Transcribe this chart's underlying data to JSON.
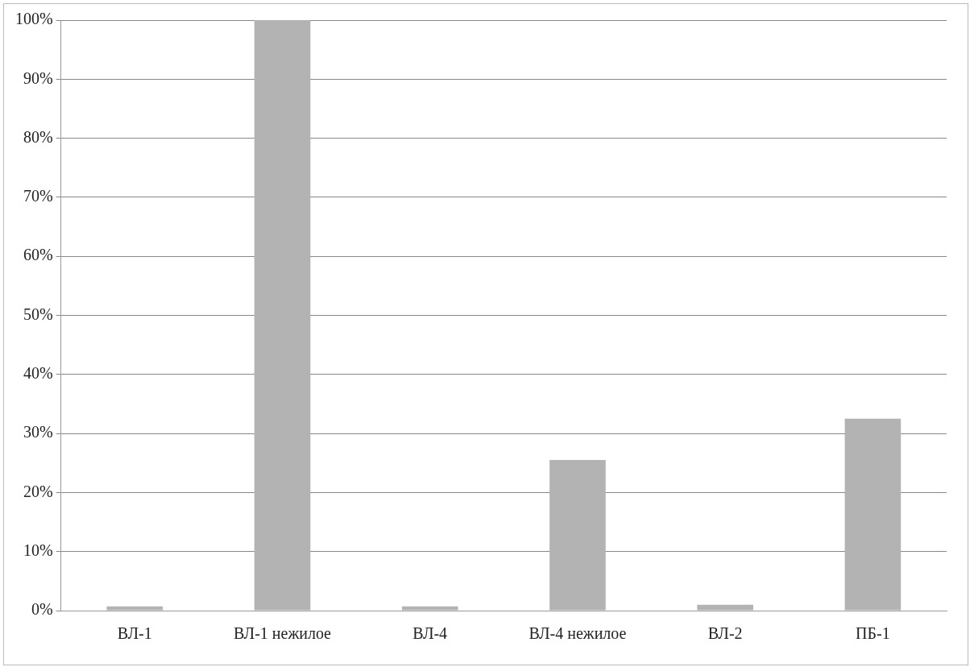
{
  "chart_data": {
    "type": "bar",
    "categories": [
      "ВЛ-1",
      "ВЛ-1 нежилое",
      "ВЛ-4",
      "ВЛ-4 нежилое",
      "ВЛ-2",
      "ПБ-1"
    ],
    "values": [
      0.7,
      100,
      0.7,
      25.5,
      1,
      32.5
    ],
    "color": "#b3b3b3",
    "ylim": [
      0,
      100
    ],
    "yticks": [
      {
        "value": 0,
        "label": "0%"
      },
      {
        "value": 10,
        "label": "10%"
      },
      {
        "value": 20,
        "label": "20%"
      },
      {
        "value": 30,
        "label": "30%"
      },
      {
        "value": 40,
        "label": "40%"
      },
      {
        "value": 50,
        "label": "50%"
      },
      {
        "value": 60,
        "label": "60%"
      },
      {
        "value": 70,
        "label": "70%"
      },
      {
        "value": 80,
        "label": "80%"
      },
      {
        "value": 90,
        "label": "90%"
      },
      {
        "value": 100,
        "label": "100%"
      }
    ],
    "grid": "y",
    "legend": false
  }
}
